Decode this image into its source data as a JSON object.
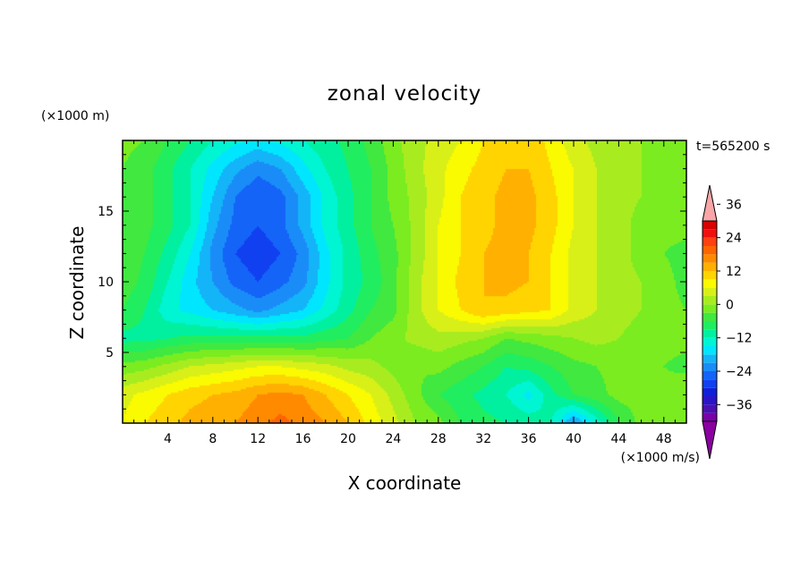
{
  "chart_data": {
    "type": "heatmap",
    "title": "zonal velocity",
    "xlabel": "X coordinate",
    "ylabel": "Z coordinate",
    "x_scale_note": "(×1000 m/s)",
    "y_scale_note": "(×1000 m)",
    "time_label": "t=565200 s",
    "xlim": [
      0,
      50
    ],
    "ylim": [
      0,
      20
    ],
    "x_ticks": [
      4,
      8,
      12,
      16,
      20,
      24,
      28,
      32,
      36,
      40,
      44,
      48
    ],
    "y_ticks": [
      5,
      10,
      15
    ],
    "colorbar": {
      "levels": [
        -42,
        -39,
        -36,
        -33,
        -30,
        -27,
        -24,
        -21,
        -18,
        -15,
        -12,
        -9,
        -6,
        -3,
        0,
        3,
        6,
        9,
        12,
        15,
        18,
        21,
        24,
        27,
        30,
        33,
        36,
        39,
        42
      ],
      "tick_labels": [
        36,
        24,
        12,
        0,
        -12,
        -24,
        -36
      ],
      "colors": [
        "#7a00a8",
        "#4a10b0",
        "#2a14c8",
        "#1020d8",
        "#1040f0",
        "#1464f8",
        "#1a8cf8",
        "#14b4f8",
        "#00e6ff",
        "#00f5d2",
        "#00f0a0",
        "#20ee60",
        "#40e840",
        "#7aec20",
        "#a8ec20",
        "#d8f018",
        "#fafa00",
        "#ffd400",
        "#ffb000",
        "#ff8a00",
        "#ff6400",
        "#ff4010",
        "#f01010",
        "#d80000"
      ],
      "over_color": "#f8a6a8",
      "under_color": "#8a00a0"
    },
    "x": [
      0,
      2,
      4,
      6,
      8,
      10,
      12,
      14,
      16,
      18,
      20,
      22,
      24,
      26,
      28,
      30,
      32,
      34,
      36,
      38,
      40,
      42,
      44,
      46,
      48,
      50
    ],
    "z": [
      0,
      2,
      4,
      6,
      8,
      10,
      12,
      14,
      16,
      18,
      20
    ],
    "values": [
      [
        6,
        9,
        11,
        13,
        14,
        15,
        17,
        19,
        17,
        15,
        12,
        8,
        4,
        0,
        -2,
        -6,
        -8,
        -9,
        -10,
        -12,
        -22,
        -14,
        -6,
        -2,
        -2,
        0
      ],
      [
        5,
        7,
        9,
        11,
        12,
        13,
        15,
        16,
        15,
        12,
        9,
        6,
        2,
        -2,
        -6,
        -8,
        -10,
        -12,
        -16,
        -10,
        -6,
        -4,
        -2,
        -2,
        -2,
        0
      ],
      [
        -2,
        -1,
        1,
        3,
        4,
        5,
        6,
        6,
        5,
        4,
        2,
        1,
        -1,
        -3,
        -2,
        -4,
        -6,
        -9,
        -8,
        -6,
        -4,
        -3,
        -2,
        -2,
        -3,
        -4
      ],
      [
        -10,
        -10,
        -9,
        -8,
        -8,
        -8,
        -8,
        -8,
        -8,
        -7,
        -6,
        -3,
        -1,
        1,
        2,
        1,
        0,
        -3,
        -2,
        -1,
        0,
        1,
        0,
        -1,
        -2,
        -2
      ],
      [
        -6,
        -9,
        -14,
        -16,
        -18,
        -20,
        -22,
        -20,
        -18,
        -14,
        -10,
        -6,
        -4,
        2,
        6,
        9,
        12,
        11,
        10,
        9,
        5,
        3,
        1,
        0,
        -2,
        -3
      ],
      [
        -4,
        -7,
        -12,
        -17,
        -21,
        -25,
        -27,
        -25,
        -22,
        -16,
        -11,
        -8,
        -4,
        2,
        6,
        10,
        12,
        13,
        12,
        9,
        5,
        3,
        1,
        0,
        -2,
        -4
      ],
      [
        -4,
        -6,
        -10,
        -15,
        -22,
        -27,
        -29,
        -27,
        -23,
        -16,
        -11,
        -7,
        -4,
        1,
        6,
        9,
        12,
        13,
        12,
        9,
        5,
        3,
        1,
        -1,
        -3,
        -4
      ],
      [
        -4,
        -5,
        -8,
        -12,
        -20,
        -25,
        -27,
        -25,
        -20,
        -14,
        -10,
        -6,
        -3,
        1,
        6,
        9,
        11,
        13,
        13,
        10,
        6,
        3,
        1,
        -1,
        -2,
        -2
      ],
      [
        -3,
        -5,
        -8,
        -12,
        -18,
        -24,
        -27,
        -25,
        -20,
        -14,
        -10,
        -6,
        -2,
        1,
        5,
        9,
        11,
        13,
        13,
        10,
        6,
        3,
        1,
        0,
        -1,
        -2
      ],
      [
        -3,
        -5,
        -8,
        -12,
        -16,
        -20,
        -23,
        -21,
        -16,
        -12,
        -9,
        -6,
        -2,
        2,
        5,
        8,
        10,
        12,
        12,
        9,
        6,
        3,
        1,
        0,
        -1,
        -2
      ],
      [
        -2,
        -3,
        -6,
        -9,
        -12,
        -14,
        -16,
        -14,
        -12,
        -10,
        -8,
        -5,
        -1,
        2,
        4,
        6,
        9,
        11,
        11,
        8,
        4,
        2,
        1,
        0,
        -1,
        -2
      ]
    ]
  }
}
